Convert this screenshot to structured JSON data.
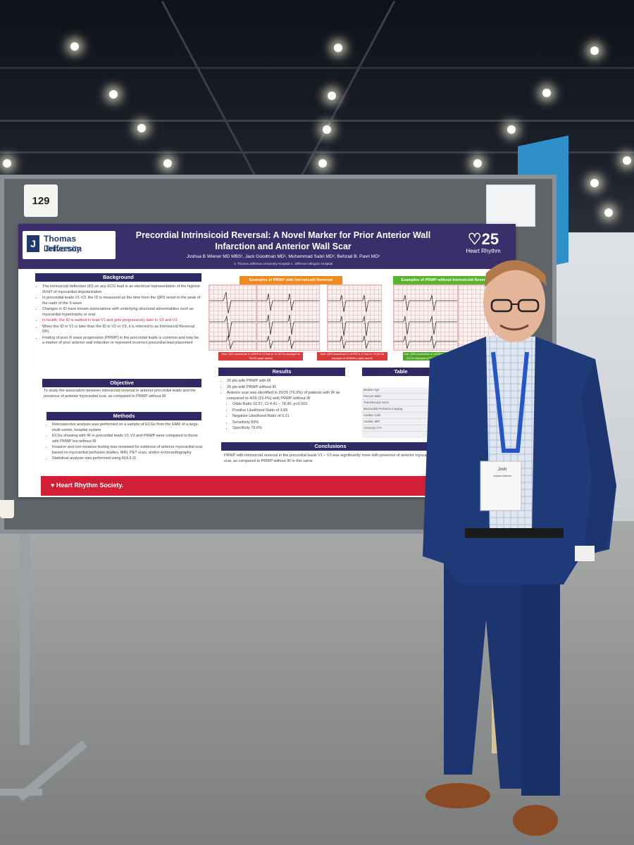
{
  "board_number": "129",
  "poster": {
    "institution_line1": "Thomas Jefferson",
    "institution_line2": "University",
    "title": "Precordial Intrinsicoid Reversal: A Novel Marker for Prior Anterior Wall Infarction and Anterior Wall Scar",
    "authors": "Joshua B Wiener MD MBS¹, Jack Goodman MD¹, Muhammad Sabri MD², Behzad B. Pavri MD¹",
    "affiliations": "1. Thomas Jefferson University Hospital  2. Jefferson Abington Hospital",
    "conference_logo_number": "25",
    "conference_logo_text": "Heart Rhythm",
    "sections": {
      "background": "Background",
      "objective": "Objective",
      "methods": "Methods",
      "results": "Results",
      "conclusions": "Conclusions",
      "table": "Table",
      "examples_with_ir": "Examples of PRWP with Intrinsicoid Reversal",
      "examples_without_ir": "Examples of PRWP without Intrinsicoid Reversal"
    },
    "background_items": [
      "The intrinsicoid deflection (ID) on any ECG lead is an electrical representation of the highest dV/dT of myocardial depolarization",
      "In precordial leads V1-V3, the ID is measured as the time from the QRS onset to the peak of the nadir of the S wave",
      "Changes in ID have known associations with underlying structural abnormalities such as myocardial hypertrophy or scar",
      "In health, the ID is earliest in lead V1 and gets progressively later in V2 and V3",
      "When the ID in V1 is later than the ID in V2 or V3, it is referred to as Intrinsicoid Reversal (IR)",
      "Finding of poor R wave progression (PRWP) in the precordial leads is common and may be a marker of prior anterior wall infarction or represent incorrect precordial lead placement"
    ],
    "objective_text": "To study the association between intrinsicoid reversal in anterior precordial leads and the presence of anterior myocardial scar, as compared to PRWP without IR",
    "methods_items": [
      "Retrospective analysis was performed on a sample of ECGs from the EMR of a large, multi-center, hospital system",
      "ECGs showing with IR in precordial leads V1-V3 and PRWP were compared to those with PRWP but without IR",
      "Invasive and non-invasive testing was reviewed for evidence of anterior myocardial scar based on myocardial perfusion studies, MRI, PET scan, and/or echocardiography",
      "Statistical analysis was performed using R(4.3.3)"
    ],
    "results_items": [
      "26 pts with PRWP with IR",
      "26 pts with PRWP without IR",
      "Anterior scar was identified in 20/26 (76.9%) of patients with IR as compared to 4/26 (15.4%) with PRWP without IR",
      "Odds Ratio 16.57, CI 4.41 – 78.90, p<0.001",
      "Positive Likelihood Ratio of 3.89",
      "Negative Likelihood Ratio of 0.21",
      "Sensitivity 83%",
      "Specificity 78.6%"
    ],
    "table_rows": [
      "Median Age",
      "Percent Male",
      "Transthoracic Echo",
      "Myocardial Perfusion Imaging",
      "Cardiac Cath",
      "Cardiac MRI",
      "Coronary CTA"
    ],
    "conclusion_text": "PRWP with intrinsicoid reversal in the precordial leads V1 – V3 was significantly more with presence of anterior myocardial scar, as compared to PRWP without IR in this same",
    "ecg_notes": [
      "Note: QRS downstroke is LATER in V1 than in V2 (ECGs displayed at TWICE paper speed)",
      "Note: QRS downstroke is LATER in V1 than in V3 (ECGs displayed at NORMAL paper speed)",
      "Note: QRS downstroke is LATER in V2 (ECGs displayed at TWICE paper speed)"
    ],
    "footer": "Heart Rhythm Society."
  },
  "badge": {
    "name_first": "Josh",
    "name_last": "Joshua Wiener"
  },
  "colors": {
    "poster_header": "#3b2f6b",
    "section_bar": "#2e2a66",
    "footer_red": "#d21f37",
    "suit": "#1f3a78"
  }
}
